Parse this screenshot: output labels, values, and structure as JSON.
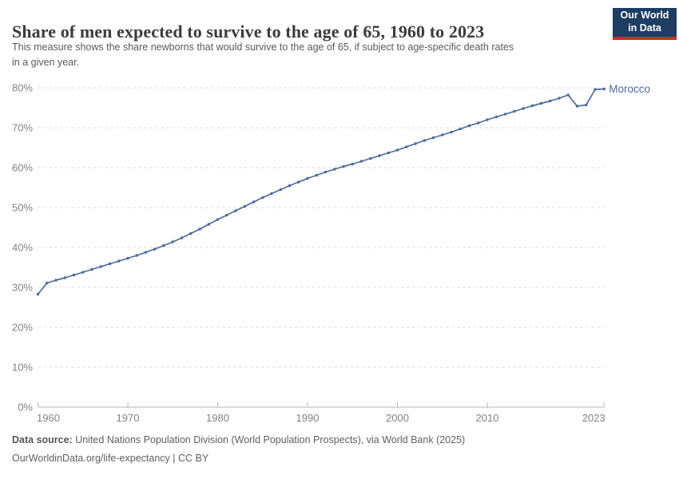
{
  "header": {
    "title": "Share of men expected to survive to the age of 65, 1960 to 2023",
    "subtitle": "This measure shows the share newborns that would survive to the age of 65, if subject to age-specific death rates in a given year.",
    "logo": {
      "line1": "Our World",
      "line2": "in Data",
      "bg_color": "#1d3d63",
      "accent_color": "#cf2a2a"
    }
  },
  "chart_data": {
    "type": "line",
    "title": "Share of men expected to survive to the age of 65, 1960 to 2023",
    "xlabel": "",
    "ylabel": "",
    "xlim": [
      1960,
      2023
    ],
    "ylim": [
      0,
      80
    ],
    "grid": "horizontal-dashed",
    "legend_position": "end-of-line-label",
    "x_ticks": [
      1960,
      1970,
      1980,
      1990,
      2000,
      2010,
      2023
    ],
    "y_ticks": [
      0,
      10,
      20,
      30,
      40,
      50,
      60,
      70,
      80
    ],
    "y_tick_suffix": "%",
    "series": [
      {
        "name": "Morocco",
        "color": "#4c6aa0",
        "x": [
          1960,
          1961,
          1962,
          1963,
          1964,
          1965,
          1966,
          1967,
          1968,
          1969,
          1970,
          1971,
          1972,
          1973,
          1974,
          1975,
          1976,
          1977,
          1978,
          1979,
          1980,
          1981,
          1982,
          1983,
          1984,
          1985,
          1986,
          1987,
          1988,
          1989,
          1990,
          1991,
          1992,
          1993,
          1994,
          1995,
          1996,
          1997,
          1998,
          1999,
          2000,
          2001,
          2002,
          2003,
          2004,
          2005,
          2006,
          2007,
          2008,
          2009,
          2010,
          2011,
          2012,
          2013,
          2014,
          2015,
          2016,
          2017,
          2018,
          2019,
          2020,
          2021,
          2022,
          2023
        ],
        "values": [
          28.3,
          31.1,
          31.8,
          32.4,
          33.1,
          33.8,
          34.5,
          35.2,
          35.9,
          36.6,
          37.3,
          38.0,
          38.8,
          39.6,
          40.5,
          41.4,
          42.4,
          43.5,
          44.6,
          45.8,
          47.0,
          48.1,
          49.2,
          50.3,
          51.4,
          52.5,
          53.5,
          54.5,
          55.5,
          56.4,
          57.3,
          58.1,
          58.9,
          59.6,
          60.3,
          60.9,
          61.6,
          62.3,
          63.0,
          63.7,
          64.4,
          65.2,
          66.0,
          66.8,
          67.5,
          68.2,
          68.9,
          69.7,
          70.5,
          71.2,
          72.0,
          72.7,
          73.4,
          74.1,
          74.8,
          75.5,
          76.1,
          76.7,
          77.4,
          78.2,
          75.4,
          75.7,
          79.6,
          79.7
        ]
      }
    ]
  },
  "footer": {
    "datasource_label": "Data source:",
    "datasource_text": " United Nations Population Division (World Population Prospects), via World Bank (2025)",
    "license_text": "OurWorldinData.org/life-expectancy | CC BY"
  }
}
